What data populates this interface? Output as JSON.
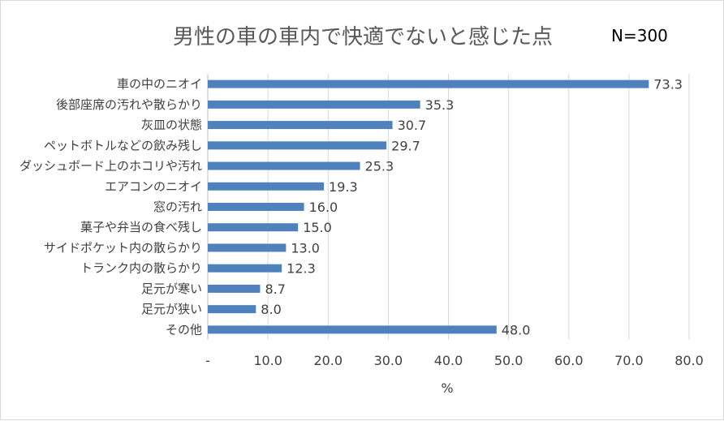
{
  "header": {
    "title": "男性の車の車内で快適でないと感じた点",
    "sample_note": "N=300"
  },
  "chart_data": {
    "type": "bar",
    "orientation": "horizontal",
    "title": "男性の車の車内で快適でないと感じた点",
    "annotation": "N=300",
    "xlabel": "%",
    "ylabel": "",
    "xlim": [
      0,
      80
    ],
    "grid": true,
    "bar_color": "#4F81BD",
    "categories": [
      "車の中のニオイ",
      "後部座席の汚れや散らかり",
      "灰皿の状態",
      "ペットボトルなどの飲み残し",
      "ダッシュボード上のホコリや汚れ",
      "エアコンのニオイ",
      "窓の汚れ",
      "菓子や弁当の食べ残し",
      "サイドポケット内の散らかり",
      "トランク内の散らかり",
      "足元が寒い",
      "足元が狭い",
      "その他"
    ],
    "values": [
      73.3,
      35.3,
      30.7,
      29.7,
      25.3,
      19.3,
      16.0,
      15.0,
      13.0,
      12.3,
      8.7,
      8.0,
      48.0
    ],
    "value_labels": [
      "73.3",
      "35.3",
      "30.7",
      "29.7",
      "25.3",
      "19.3",
      "16.0",
      "15.0",
      "13.0",
      "12.3",
      "8.7",
      "8.0",
      "48.0"
    ],
    "ticks": [
      0,
      10,
      20,
      30,
      40,
      50,
      60,
      70,
      80
    ],
    "tick_labels": [
      "-",
      "10.0",
      "20.0",
      "30.0",
      "40.0",
      "50.0",
      "60.0",
      "70.0",
      "80.0"
    ]
  }
}
